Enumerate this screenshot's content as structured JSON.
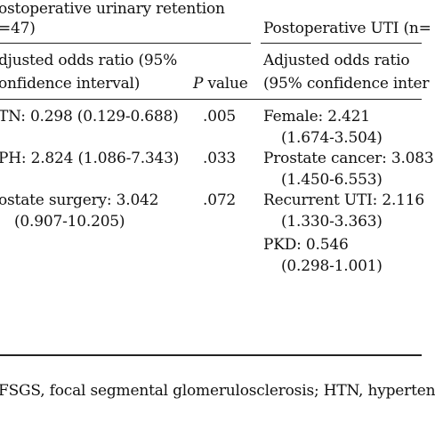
{
  "table": {
    "groups": [
      {
        "title_line1": "ostoperative urinary retention",
        "title_line2": "=47)",
        "col_header_line1": "djusted odds ratio (95%",
        "col_header_line2": "onfidence interval)",
        "p_header_italic": "P",
        "p_header_rest": " value",
        "rows": [
          {
            "line1": "TN: 0.298 (0.129-0.688)",
            "p": ".005"
          },
          {
            "line1": "PH: 2.824 (1.086-7.343)",
            "p": ".033"
          },
          {
            "line1": "ostate surgery: 3.042",
            "line2": "(0.907-10.205)",
            "p": ".072"
          }
        ]
      },
      {
        "title": "Postoperative UTI (n=",
        "col_header_line1": "Adjusted odds ratio",
        "col_header_line2": "(95% confidence inter",
        "rows": [
          {
            "line1": "Female: 2.421",
            "line2": "(1.674-3.504)"
          },
          {
            "line1": "Prostate cancer: 3.083",
            "line2": "(1.450-6.553)"
          },
          {
            "line1": "Recurrent UTI: 2.116",
            "line2": "(1.330-3.363)"
          },
          {
            "line1": "PKD: 0.546",
            "line2": "(0.298-1.001)"
          }
        ]
      }
    ],
    "footnote": "FSGS, focal segmental glomerulosclerosis; HTN, hyperten"
  }
}
